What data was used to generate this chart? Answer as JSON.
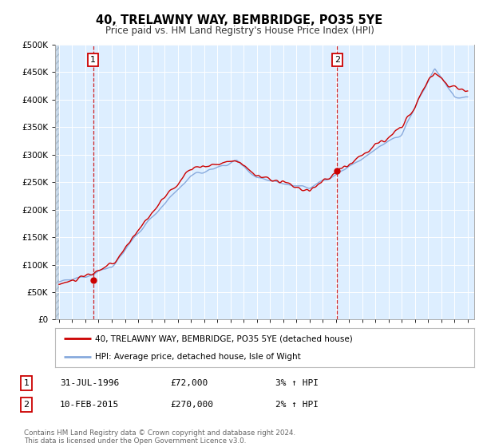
{
  "title": "40, TRELAWNY WAY, BEMBRIDGE, PO35 5YE",
  "subtitle": "Price paid vs. HM Land Registry's House Price Index (HPI)",
  "legend_line1": "40, TRELAWNY WAY, BEMBRIDGE, PO35 5YE (detached house)",
  "legend_line2": "HPI: Average price, detached house, Isle of Wight",
  "footnote": "Contains HM Land Registry data © Crown copyright and database right 2024.\nThis data is licensed under the Open Government Licence v3.0.",
  "annotation1_date": "31-JUL-1996",
  "annotation1_price": "£72,000",
  "annotation1_hpi": "3% ↑ HPI",
  "annotation2_date": "10-FEB-2015",
  "annotation2_price": "£270,000",
  "annotation2_hpi": "2% ↑ HPI",
  "ylim": [
    0,
    500000
  ],
  "xlim_start": 1993.7,
  "xlim_end": 2025.5,
  "plot_bg_color": "#ddeeff",
  "fig_bg_color": "#ffffff",
  "red_line_color": "#cc0000",
  "blue_line_color": "#88aadd",
  "marker1_x": 1996.58,
  "marker1_y": 72000,
  "marker2_x": 2015.11,
  "marker2_y": 270000
}
